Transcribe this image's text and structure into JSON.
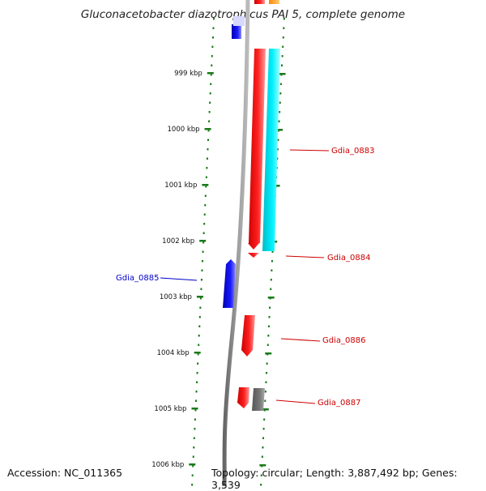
{
  "title": "Gluconacetobacter diazotrophicus PAI 5, complete genome",
  "footer": {
    "accession": "Accession: NC_011365",
    "topology": "Topology: circular; Length: 3,887,492 bp; Genes: 3,539"
  },
  "ticks": [
    {
      "label": "999 kbp"
    },
    {
      "label": "1000 kbp"
    },
    {
      "label": "1001 kbp"
    },
    {
      "label": "1002 kbp"
    },
    {
      "label": "1003 kbp"
    },
    {
      "label": "1004 kbp"
    },
    {
      "label": "1005 kbp"
    },
    {
      "label": "1006 kbp"
    }
  ],
  "gene_labels": [
    {
      "name": "Gdia_0883",
      "color": "#cc0000"
    },
    {
      "name": "Gdia_0884",
      "color": "#cc0000"
    },
    {
      "name": "Gdia_0885",
      "color": "#0000cc"
    },
    {
      "name": "Gdia_0886",
      "color": "#cc0000"
    },
    {
      "name": "Gdia_0887",
      "color": "#cc0000"
    }
  ],
  "colors": {
    "forward_cds": "#ff0000",
    "reverse_cds": "#0000ff",
    "rna": "#00e5ee",
    "other": "#666666",
    "top_orange": "#ff9900",
    "tick": "#1a7a1a",
    "backbone": "#888888"
  }
}
